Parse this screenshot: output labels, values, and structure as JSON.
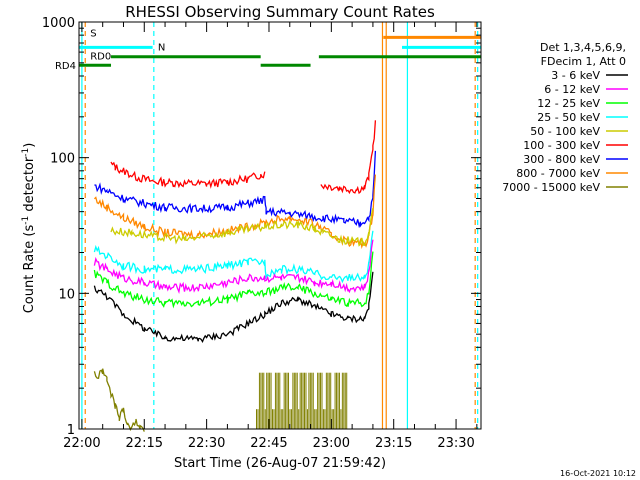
{
  "chart_data": {
    "type": "line",
    "title": "RHESSI Observing Summary Count Rates",
    "xlabel": "Start Time (26-Aug-07 21:59:42)",
    "ylabel_main": "Count Rate (s",
    "ylabel_sup1": "-1",
    "ylabel_mid": " detector",
    "ylabel_sup2": "-1",
    "ylabel_end": ")",
    "yscale": "log",
    "ylim": [
      1,
      1000
    ],
    "xlim_minutes": [
      -0.7,
      96
    ],
    "x_ticks": [
      {
        "m": 0,
        "label": "22:00"
      },
      {
        "m": 15,
        "label": "22:15"
      },
      {
        "m": 30,
        "label": "22:30"
      },
      {
        "m": 45,
        "label": "22:45"
      },
      {
        "m": 60,
        "label": "23:00"
      },
      {
        "m": 75,
        "label": "23:15"
      },
      {
        "m": 90,
        "label": "23:30"
      }
    ],
    "y_ticks": [
      {
        "v": 1,
        "label": "1"
      },
      {
        "v": 10,
        "label": "10"
      },
      {
        "v": 100,
        "label": "100"
      },
      {
        "v": 1000,
        "label": "1000"
      }
    ],
    "legend_header": [
      "Det 1,3,4,5,6,9,",
      "FDecim 1, Att 0"
    ],
    "legend": [
      {
        "name": "3 - 6 keV",
        "color": "#000000"
      },
      {
        "name": "6 - 12 keV",
        "color": "#ff00ff"
      },
      {
        "name": "12 - 25 keV",
        "color": "#00ff00"
      },
      {
        "name": "25 - 50 keV",
        "color": "#00ffff"
      },
      {
        "name": "50 - 100 keV",
        "color": "#cccc00"
      },
      {
        "name": "100 - 300 keV",
        "color": "#ff0000"
      },
      {
        "name": "300 - 800 keV",
        "color": "#0000ff"
      },
      {
        "name": "800 - 7000 keV",
        "color": "#ff8800"
      },
      {
        "name": "7000 - 15000 keV",
        "color": "#808000"
      }
    ],
    "flag_bars": [
      {
        "label": "S",
        "color": "#ff8800",
        "segments": [
          [
            72.5,
            96
          ]
        ],
        "level": 770
      },
      {
        "label": "N",
        "color": "#00ffff",
        "segments": [
          [
            -0.7,
            17
          ],
          [
            77,
            96
          ]
        ],
        "level": 650
      },
      {
        "label": "RD0",
        "color": "#008800",
        "segments": [
          [
            7,
            43
          ],
          [
            57,
            96
          ]
        ],
        "level": 555
      },
      {
        "label": "RD4",
        "color": "#008800",
        "segments": [
          [
            -0.7,
            7
          ],
          [
            43,
            55
          ]
        ],
        "level": 480
      }
    ],
    "vertical_markers": [
      {
        "m": 0,
        "color": "#00ffff",
        "dashed": false
      },
      {
        "m": 0.8,
        "color": "#ff8800",
        "dashed": true
      },
      {
        "m": 17.3,
        "color": "#00ffff",
        "dashed": true
      },
      {
        "m": 72.3,
        "color": "#ff8800",
        "dashed": false
      },
      {
        "m": 73.2,
        "color": "#ff8800",
        "dashed": false
      },
      {
        "m": 78.3,
        "color": "#00ffff",
        "dashed": false
      },
      {
        "m": 94.6,
        "color": "#ff8800",
        "dashed": true
      },
      {
        "m": 95.2,
        "color": "#00ffff",
        "dashed": true
      }
    ],
    "series": [
      {
        "name": "100 - 300 keV",
        "color": "#ff0000",
        "points": [
          [
            7,
            90
          ],
          [
            8,
            85
          ],
          [
            10,
            80
          ],
          [
            13,
            72
          ],
          [
            17,
            67
          ],
          [
            22,
            65
          ],
          [
            30,
            64
          ],
          [
            35,
            66
          ],
          [
            40,
            70
          ],
          [
            43,
            75
          ],
          [
            44,
            76
          ],
          [
            44.3,
            null
          ],
          [
            57.5,
            63
          ],
          [
            62,
            60
          ],
          [
            66,
            58
          ],
          [
            68,
            60
          ],
          [
            69,
            72
          ],
          [
            70,
            120
          ],
          [
            70.6,
            180
          ]
        ]
      },
      {
        "name": "300 - 800 keV",
        "color": "#0000ff",
        "points": [
          [
            3,
            62
          ],
          [
            6,
            57
          ],
          [
            10,
            50
          ],
          [
            15,
            46
          ],
          [
            20,
            43
          ],
          [
            28,
            42
          ],
          [
            35,
            43
          ],
          [
            40,
            46
          ],
          [
            44,
            49
          ],
          [
            44.3,
            40
          ],
          [
            50,
            39
          ],
          [
            55,
            37
          ],
          [
            58,
            36
          ],
          [
            63,
            34
          ],
          [
            67,
            33
          ],
          [
            69,
            36
          ],
          [
            70,
            50
          ],
          [
            70.6,
            110
          ]
        ]
      },
      {
        "name": "800 - 7000 keV",
        "color": "#ff8800",
        "points": [
          [
            3,
            50
          ],
          [
            6,
            43
          ],
          [
            10,
            36
          ],
          [
            15,
            31
          ],
          [
            20,
            28
          ],
          [
            28,
            27
          ],
          [
            35,
            29
          ],
          [
            40,
            31
          ],
          [
            44,
            33
          ],
          [
            47,
            35
          ],
          [
            50,
            36
          ],
          [
            54,
            34
          ],
          [
            57,
            31
          ],
          [
            60,
            27
          ],
          [
            64,
            24
          ],
          [
            68,
            23
          ],
          [
            69,
            26
          ],
          [
            70,
            40
          ],
          [
            70.6,
            80
          ]
        ]
      },
      {
        "name": "50 - 100 keV",
        "color": "#cccc00",
        "points": [
          [
            7,
            29
          ],
          [
            12,
            28
          ],
          [
            18,
            26
          ],
          [
            25,
            25
          ],
          [
            32,
            27
          ],
          [
            38,
            29
          ],
          [
            44,
            31
          ],
          [
            48,
            32
          ],
          [
            52,
            32
          ],
          [
            56,
            30
          ],
          [
            58,
            28
          ],
          [
            62,
            25
          ],
          [
            66,
            24
          ],
          [
            68,
            24
          ],
          [
            69,
            28
          ],
          [
            70,
            40
          ]
        ]
      },
      {
        "name": "25 - 50 keV",
        "color": "#00ffff",
        "points": [
          [
            3,
            21
          ],
          [
            6,
            19
          ],
          [
            10,
            16
          ],
          [
            15,
            15
          ],
          [
            20,
            15
          ],
          [
            28,
            15
          ],
          [
            35,
            16
          ],
          [
            40,
            17
          ],
          [
            44,
            17
          ],
          [
            44.3,
            14
          ],
          [
            48,
            15
          ],
          [
            52,
            15
          ],
          [
            56,
            14
          ],
          [
            60,
            13
          ],
          [
            64,
            13
          ],
          [
            68,
            13
          ],
          [
            69,
            16
          ],
          [
            70,
            30
          ]
        ]
      },
      {
        "name": "6 - 12 keV",
        "color": "#ff00ff",
        "points": [
          [
            3,
            17
          ],
          [
            6,
            15
          ],
          [
            10,
            13
          ],
          [
            15,
            12
          ],
          [
            20,
            11
          ],
          [
            28,
            11
          ],
          [
            35,
            12
          ],
          [
            40,
            13
          ],
          [
            44,
            13
          ],
          [
            48,
            13
          ],
          [
            52,
            13
          ],
          [
            56,
            12
          ],
          [
            60,
            12
          ],
          [
            64,
            11
          ],
          [
            68,
            11
          ],
          [
            69,
            14
          ],
          [
            70,
            25
          ]
        ]
      },
      {
        "name": "12 - 25 keV",
        "color": "#00ff00",
        "points": [
          [
            3,
            14
          ],
          [
            6,
            12
          ],
          [
            10,
            10
          ],
          [
            15,
            9
          ],
          [
            20,
            8.5
          ],
          [
            28,
            8.5
          ],
          [
            35,
            9
          ],
          [
            40,
            10
          ],
          [
            44,
            10
          ],
          [
            48,
            11
          ],
          [
            52,
            11
          ],
          [
            56,
            10
          ],
          [
            60,
            9
          ],
          [
            64,
            8.5
          ],
          [
            68,
            8.5
          ],
          [
            69,
            10
          ],
          [
            70,
            20
          ]
        ]
      },
      {
        "name": "3 - 6 keV",
        "color": "#000000",
        "points": [
          [
            3,
            11
          ],
          [
            6,
            9.5
          ],
          [
            10,
            7
          ],
          [
            15,
            5.5
          ],
          [
            20,
            4.7
          ],
          [
            28,
            4.6
          ],
          [
            35,
            5
          ],
          [
            40,
            6
          ],
          [
            44,
            7
          ],
          [
            48,
            8.5
          ],
          [
            52,
            9
          ],
          [
            56,
            8
          ],
          [
            60,
            7
          ],
          [
            64,
            6.5
          ],
          [
            68,
            6.5
          ],
          [
            69,
            8
          ],
          [
            70,
            14
          ]
        ]
      },
      {
        "name": "7000 - 15000 keV",
        "color": "#808000",
        "points": [
          [
            3,
            2.6
          ],
          [
            4,
            2.4
          ],
          [
            5,
            2.7
          ],
          [
            6,
            2.3
          ],
          [
            7,
            1.8
          ],
          [
            8,
            1.5
          ],
          [
            9,
            1.2
          ],
          [
            10,
            1.4
          ],
          [
            11,
            1.1
          ],
          [
            12,
            1.0
          ],
          [
            13,
            1.2
          ],
          [
            14,
            1.0
          ],
          [
            15,
            1.0
          ]
        ]
      }
    ],
    "olive_blocks": [
      [
        42,
        64
      ]
    ],
    "footer_date": "16-Oct-2021 10:12"
  }
}
